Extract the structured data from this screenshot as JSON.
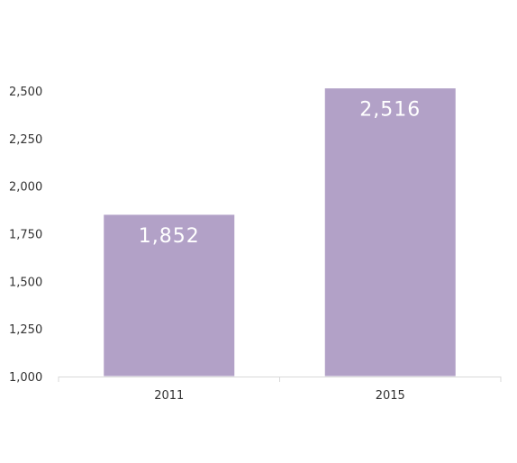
{
  "chart_data": {
    "type": "bar",
    "categories": [
      "2011",
      "2015"
    ],
    "values": [
      1852,
      2516
    ],
    "value_labels": [
      "1,852",
      "2,516"
    ],
    "title": "",
    "xlabel": "",
    "ylabel": "",
    "ylim": [
      1000,
      2500
    ],
    "yticks": [
      1000,
      1250,
      1500,
      1750,
      2000,
      2250,
      2500
    ],
    "ytick_labels": [
      "1,000",
      "1,250",
      "1,500",
      "1,750",
      "2,000",
      "2,250",
      "2,500"
    ],
    "grid": false,
    "legend": "none",
    "bar_color": "#b2a1c7"
  }
}
